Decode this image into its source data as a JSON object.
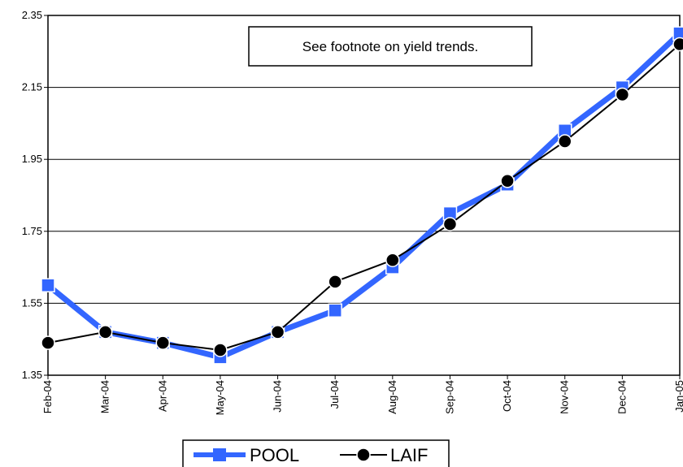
{
  "chart_data": {
    "type": "line",
    "categories": [
      "Feb-04",
      "Mar-04",
      "Apr-04",
      "May-04",
      "Jun-04",
      "Jul-04",
      "Aug-04",
      "Sep-04",
      "Oct-04",
      "Nov-04",
      "Dec-04",
      "Jan-05"
    ],
    "series": [
      {
        "name": "POOL",
        "values": [
          1.6,
          1.47,
          1.44,
          1.4,
          1.47,
          1.53,
          1.65,
          1.8,
          1.88,
          2.03,
          2.15,
          2.3
        ],
        "color": "#3366ff",
        "marker": "square"
      },
      {
        "name": "LAIF",
        "values": [
          1.44,
          1.47,
          1.44,
          1.42,
          1.47,
          1.61,
          1.67,
          1.77,
          1.89,
          2.0,
          2.13,
          2.27
        ],
        "color": "#000000",
        "marker": "circle"
      }
    ],
    "yticks": [
      "1.35",
      "1.55",
      "1.75",
      "1.95",
      "2.15",
      "2.35"
    ],
    "ylim": [
      1.35,
      2.35
    ],
    "grid": true,
    "legend_position": "bottom",
    "annotation": "See footnote on yield trends."
  }
}
